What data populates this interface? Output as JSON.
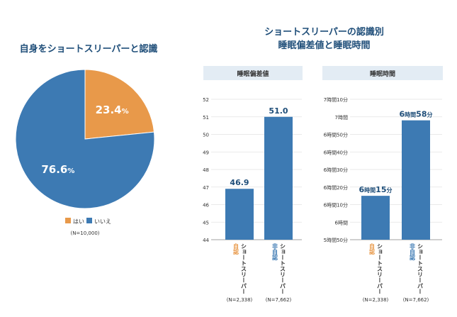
{
  "colors": {
    "orange": "#e8994a",
    "blue": "#3d7ab3",
    "title": "#1f4e79",
    "header_bg": "#e3ecf4",
    "axis_text": "#333333"
  },
  "left_title": "自身をショートスリーパーと認識",
  "right_title_line1": "ショートスリーパーの認識別",
  "right_title_line2": "睡眠偏差値と睡眠時間",
  "chart_data": [
    {
      "type": "pie",
      "title": "自身をショートスリーパーと認識",
      "slices": [
        {
          "label": "はい",
          "value": 23.4,
          "display_value": "23.4",
          "unit": "%"
        },
        {
          "label": "いいえ",
          "value": 76.6,
          "display_value": "76.6",
          "unit": "%"
        }
      ],
      "legend": [
        "はい",
        "いいえ"
      ],
      "note": "(N=10,000)"
    },
    {
      "type": "bar",
      "title": "睡眠偏差値",
      "ylim": [
        44,
        52
      ],
      "yticks": [
        "44",
        "45",
        "46",
        "47",
        "48",
        "49",
        "50",
        "51",
        "52"
      ],
      "categories": [
        {
          "prefix": "自認",
          "name": "ショートスリーパー",
          "n": "(N=2,338)"
        },
        {
          "prefix": "非自認",
          "name": "ショートスリーパー",
          "n": "(N=7,662)"
        }
      ],
      "values": [
        46.9,
        51.0
      ],
      "labels": [
        "46.9",
        "51.0"
      ]
    },
    {
      "type": "bar",
      "title": "睡眠時間",
      "ylim_minutes": [
        350,
        430
      ],
      "yticks": [
        "5時間50分",
        "6時間",
        "6時間10分",
        "6時間20分",
        "6時間30分",
        "6時間40分",
        "6時間50分",
        "7時間",
        "7時間10分"
      ],
      "categories": [
        {
          "prefix": "自認",
          "name": "ショートスリーパー",
          "n": "(N=2,338)"
        },
        {
          "prefix": "非自認",
          "name": "ショートスリーパー",
          "n": "(N=7,662)"
        }
      ],
      "values_minutes": [
        375,
        418
      ],
      "labels": [
        {
          "h": "6",
          "hu": "時間",
          "m": "15",
          "mu": "分"
        },
        {
          "h": "6",
          "hu": "時間",
          "m": "58",
          "mu": "分"
        }
      ]
    }
  ]
}
